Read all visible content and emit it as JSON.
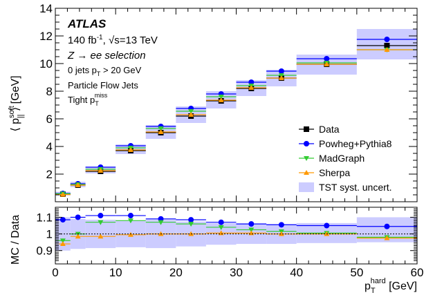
{
  "chart_data": [
    {
      "type": "scatter",
      "panel": "main",
      "x_bins": [
        [
          0,
          2.5
        ],
        [
          2.5,
          5
        ],
        [
          5,
          10
        ],
        [
          10,
          15
        ],
        [
          15,
          20
        ],
        [
          20,
          25
        ],
        [
          25,
          30
        ],
        [
          30,
          35
        ],
        [
          35,
          40
        ],
        [
          40,
          50
        ],
        [
          50,
          60
        ]
      ],
      "x_centers": [
        1.25,
        3.75,
        7.5,
        12.5,
        17.5,
        22.5,
        27.5,
        32.5,
        37.5,
        45,
        55
      ],
      "ylim": [
        0,
        14
      ],
      "xlim": [
        0,
        60
      ],
      "y_ticks": [
        "2",
        "4",
        "6",
        "8",
        "10",
        "12",
        "14"
      ],
      "ylabel": {
        "main": "⟨ p",
        "sup": "soft",
        "sub": "||",
        "end": " ⟩ [GeV]"
      },
      "series": [
        {
          "name": "Data",
          "color": "#000000",
          "marker": "square",
          "values": [
            0.55,
            1.2,
            2.2,
            3.7,
            5.0,
            6.2,
            7.3,
            8.2,
            8.95,
            9.95,
            11.3
          ]
        },
        {
          "name": "Powheg+Pythia8",
          "color": "#0000ff",
          "marker": "circle",
          "values": [
            0.6,
            1.3,
            2.5,
            4.05,
            5.45,
            6.75,
            7.8,
            8.65,
            9.45,
            10.35,
            11.75
          ]
        },
        {
          "name": "MadGraph",
          "color": "#33cc33",
          "marker": "triangle-down",
          "values": [
            0.58,
            1.25,
            2.35,
            3.9,
            5.3,
            6.55,
            7.6,
            8.4,
            9.15,
            10.05,
            11.0
          ]
        },
        {
          "name": "Sherpa",
          "color": "#ff9900",
          "marker": "triangle-up",
          "values": [
            0.52,
            1.2,
            2.25,
            3.75,
            5.05,
            6.3,
            7.35,
            8.25,
            8.95,
            9.95,
            11.0
          ]
        }
      ],
      "band": {
        "name": "TST syst. uncert.",
        "color": "#ccccff",
        "low": [
          0.45,
          1.05,
          2.05,
          3.45,
          4.55,
          5.7,
          6.75,
          7.65,
          8.35,
          9.2,
          10.3
        ],
        "high": [
          0.72,
          1.45,
          2.55,
          4.15,
          5.55,
          6.9,
          8.0,
          8.8,
          9.55,
          10.65,
          12.5
        ]
      },
      "legend_position": "bottom-right",
      "annotations": {
        "atlas": "ATLAS",
        "lumi_pre": "140 fb",
        "lumi_sup": "-1",
        "lumi_mid": ", √s=13 TeV",
        "selection": "Z → ee selection",
        "jets_pre": "0 jets p",
        "jets_sub": "T",
        "jets_post": " > 20 GeV",
        "pflow": "Particle Flow Jets",
        "tight_pre": "Tight p",
        "tight_sub": "T",
        "tight_sup": "miss"
      }
    },
    {
      "type": "scatter",
      "panel": "ratio",
      "ylabel": "MC / Data",
      "ylim": [
        0.82,
        1.16
      ],
      "y_ticks": [
        "0.9",
        "1",
        "1.1"
      ],
      "reference_line": 1,
      "x_ticks": [
        "0",
        "10",
        "20",
        "30",
        "40",
        "50",
        "60"
      ],
      "xlabel": {
        "main": "p",
        "sub": "T",
        "sup": "hard",
        "end": " [GeV]"
      },
      "series": [
        {
          "name": "Powheg+Pythia8",
          "color": "#0000ff",
          "marker": "circle",
          "values": [
            1.085,
            1.1,
            1.11,
            1.11,
            1.09,
            1.085,
            1.07,
            1.06,
            1.055,
            1.05,
            1.045
          ]
        },
        {
          "name": "MadGraph",
          "color": "#33cc33",
          "marker": "triangle-down",
          "values": [
            0.96,
            1.0,
            1.07,
            1.08,
            1.07,
            1.06,
            1.04,
            1.025,
            1.015,
            1.005,
            0.98
          ]
        },
        {
          "name": "Sherpa",
          "color": "#ff9900",
          "marker": "triangle-up",
          "values": [
            0.94,
            0.985,
            0.985,
            0.995,
            1.0,
            1.0,
            1.005,
            1.005,
            1.0,
            1.0,
            0.975
          ]
        }
      ],
      "band": {
        "color": "#ccccff",
        "low": [
          0.9,
          0.91,
          0.915,
          0.92,
          0.915,
          0.925,
          0.935,
          0.94,
          0.94,
          0.945,
          0.95
        ],
        "high": [
          1.1,
          1.09,
          1.085,
          1.08,
          1.085,
          1.075,
          1.065,
          1.06,
          1.06,
          1.065,
          1.1
        ]
      }
    }
  ]
}
